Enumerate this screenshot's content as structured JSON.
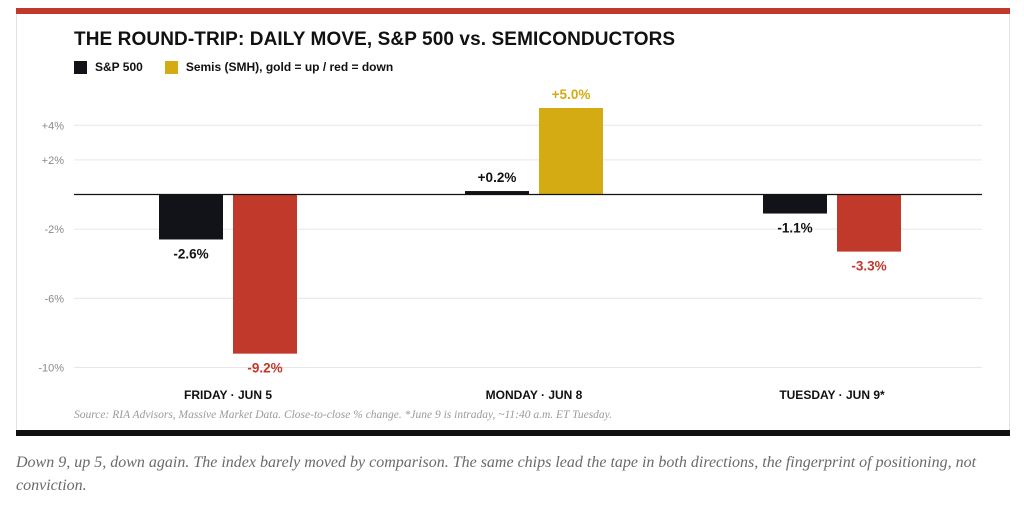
{
  "colors": {
    "accent_top": "#c0392b",
    "rule_bottom": "#111111",
    "sp500": "#111318",
    "semis_up": "#d4ab12",
    "semis_down": "#c0392b",
    "grid": "#e6e6e6",
    "axis_text": "#8a8a8a"
  },
  "header": {
    "title": "THE ROUND-TRIP: DAILY MOVE, S&P 500 vs. SEMICONDUCTORS"
  },
  "legend": {
    "items": [
      {
        "label": "S&P 500",
        "color": "#111318"
      },
      {
        "label": "Semis (SMH), gold = up / red = down",
        "color": "#d4ab12"
      }
    ]
  },
  "chart_data": {
    "type": "bar",
    "categories": [
      "FRIDAY · JUN 5",
      "MONDAY · JUN 8",
      "TUESDAY · JUN 9*"
    ],
    "series": [
      {
        "name": "S&P 500",
        "values": [
          -2.6,
          0.2,
          -1.1
        ],
        "data_labels": [
          "-2.6%",
          "+0.2%",
          "-1.1%"
        ]
      },
      {
        "name": "Semis (SMH)",
        "values": [
          -9.2,
          5.0,
          -3.3
        ],
        "data_labels": [
          "-9.2%",
          "+5.0%",
          "-3.3%"
        ]
      }
    ],
    "y_ticks": [
      4,
      2,
      -2,
      -6,
      -10
    ],
    "y_tick_labels": [
      "+4%",
      "+2%",
      "-2%",
      "-6%",
      "-10%"
    ],
    "ylim": [
      -10,
      5
    ],
    "grid": true,
    "legend_position": "top-left",
    "title": "THE ROUND-TRIP: DAILY MOVE, S&P 500 vs. SEMICONDUCTORS",
    "xlabel": "",
    "ylabel": ""
  },
  "footer": {
    "source": "Source: RIA Advisors, Massive Market Data. Close-to-close % change. *June 9 is intraday, ~11:40 a.m. ET Tuesday."
  },
  "caption": {
    "text": "Down 9, up 5, down again. The index barely moved by comparison. The same chips lead the tape in both directions, the fingerprint of positioning, not conviction."
  }
}
